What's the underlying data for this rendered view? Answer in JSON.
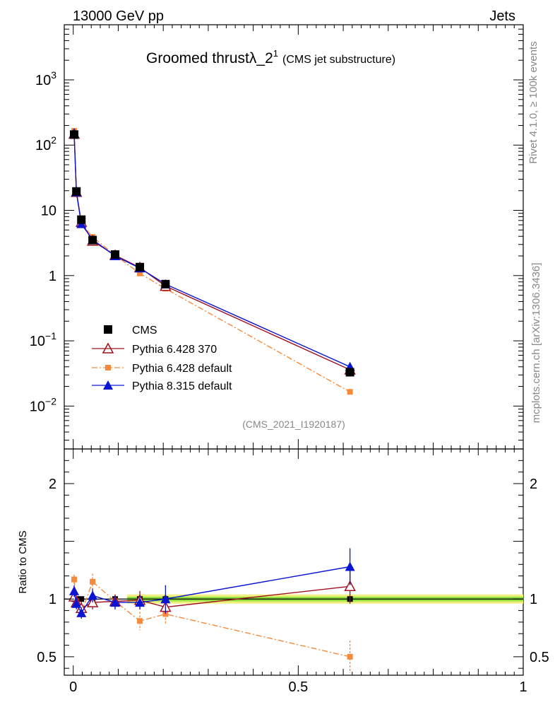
{
  "header": {
    "left": "13000 GeV pp",
    "right": "Jets"
  },
  "side": {
    "rivet": "Rivet 4.1.0, ≥ 100k events",
    "mcplots": "mcplots.cern.ch [arXiv:1306.3436]"
  },
  "title": {
    "main": "Groomed thrustλ_2",
    "sup": "1",
    "sub": "(CMS jet substructure)"
  },
  "watermark": "(CMS_2021_I1920187)",
  "ratio_ylabel": "Ratio to CMS",
  "colors": {
    "cms": "#000000",
    "py6_370": "#a01020",
    "py6_default": "#f58a3a",
    "py8": "#0a14d2",
    "band_outer": "#f0f080",
    "band_inner": "#90e040"
  },
  "chart_data": [
    {
      "type": "line",
      "yscale": "log",
      "xlim": [
        -0.02,
        1.0
      ],
      "ylim": [
        0.0022,
        7000
      ],
      "yticks": [
        {
          "v": 0.01,
          "base": "10",
          "exp": "−2"
        },
        {
          "v": 0.1,
          "base": "10",
          "exp": "−1"
        },
        {
          "v": 1,
          "base": "1",
          "exp": ""
        },
        {
          "v": 10,
          "base": "10",
          "exp": ""
        },
        {
          "v": 100,
          "base": "10",
          "exp": "2"
        },
        {
          "v": 1000,
          "base": "10",
          "exp": "3"
        }
      ],
      "series": [
        {
          "name": "CMS",
          "key": "cms",
          "marker": "square",
          "x": [
            0.002,
            0.007,
            0.018,
            0.043,
            0.093,
            0.148,
            0.205,
            0.615
          ],
          "y": [
            145,
            19.5,
            7.2,
            3.5,
            2.1,
            1.35,
            0.74,
            0.033
          ],
          "yerr": [
            0.04,
            0.04,
            0.04,
            0.04,
            0.04,
            0.04,
            0.04,
            0.05
          ]
        },
        {
          "name": "Pythia 6.428 370",
          "key": "py6_370",
          "marker": "triangle-open",
          "x": [
            0.002,
            0.007,
            0.018,
            0.043,
            0.093,
            0.148,
            0.205,
            0.615
          ],
          "y": [
            148,
            19,
            6.6,
            3.4,
            2.05,
            1.33,
            0.69,
            0.036
          ],
          "yerr": [
            0,
            0,
            0,
            0,
            0,
            0,
            0,
            0.06
          ]
        },
        {
          "name": "Pythia 6.428 default",
          "key": "py6_default",
          "marker": "square-small",
          "dash": "8,3,2,3",
          "x": [
            0.002,
            0.007,
            0.018,
            0.043,
            0.093,
            0.148,
            0.205,
            0.615
          ],
          "y": [
            165,
            19,
            6.3,
            3.9,
            2.05,
            1.08,
            0.63,
            0.0165
          ],
          "yerr": [
            0.02,
            0.02,
            0.03,
            0.03,
            0.03,
            0.05,
            0.05,
            0.12
          ]
        },
        {
          "name": "Pythia 8.315 default",
          "key": "py8",
          "marker": "triangle-filled",
          "x": [
            0.002,
            0.007,
            0.018,
            0.043,
            0.093,
            0.148,
            0.205,
            0.615
          ],
          "y": [
            152,
            19,
            6.2,
            3.55,
            2.0,
            1.3,
            0.74,
            0.04
          ],
          "yerr": [
            0.02,
            0.02,
            0.03,
            0.03,
            0.03,
            0.03,
            0.05,
            0.06
          ]
        }
      ],
      "legend": {
        "position": "bottom-left"
      }
    },
    {
      "type": "line",
      "ylabel": "Ratio to CMS",
      "xlim": [
        -0.02,
        1.0
      ],
      "ylim": [
        0.34,
        2.3
      ],
      "yticks": [
        {
          "v": 0.5,
          "label": "0.5"
        },
        {
          "v": 1,
          "label": "1"
        },
        {
          "v": 2,
          "label": "2"
        }
      ],
      "xticks": [
        {
          "v": 0,
          "label": "0"
        },
        {
          "v": 0.5,
          "label": "0.5"
        },
        {
          "v": 1,
          "label": "1"
        }
      ],
      "band": {
        "x0": 0.12,
        "x1": 1.0,
        "outer": 0.04,
        "inner": 0.02
      },
      "series": [
        {
          "key": "py6_370",
          "marker": "triangle-open",
          "x": [
            0.002,
            0.007,
            0.018,
            0.043,
            0.093,
            0.148,
            0.205,
            0.615
          ],
          "y": [
            1.02,
            0.97,
            0.92,
            0.97,
            0.98,
            0.99,
            0.93,
            1.11
          ],
          "err": [
            0.05,
            0.05,
            0.06,
            0.06,
            0.06,
            0.08,
            0.06,
            0.15
          ]
        },
        {
          "key": "py6_default",
          "marker": "square-small",
          "dash": "8,3,2,3",
          "x": [
            0.002,
            0.007,
            0.018,
            0.043,
            0.093,
            0.148,
            0.205,
            0.615
          ],
          "y": [
            1.17,
            0.98,
            0.88,
            1.15,
            0.98,
            0.81,
            0.87,
            0.5
          ],
          "err": [
            0.04,
            0.04,
            0.05,
            0.07,
            0.06,
            0.08,
            0.09,
            0.14
          ]
        },
        {
          "key": "py8",
          "marker": "triangle-filled",
          "x": [
            0.002,
            0.007,
            0.018,
            0.043,
            0.093,
            0.148,
            0.205,
            0.615
          ],
          "y": [
            1.07,
            0.96,
            0.88,
            1.03,
            0.97,
            0.97,
            1.0,
            1.28
          ],
          "err": [
            0.05,
            0.05,
            0.05,
            0.06,
            0.06,
            0.06,
            0.12,
            0.16
          ]
        }
      ]
    }
  ]
}
